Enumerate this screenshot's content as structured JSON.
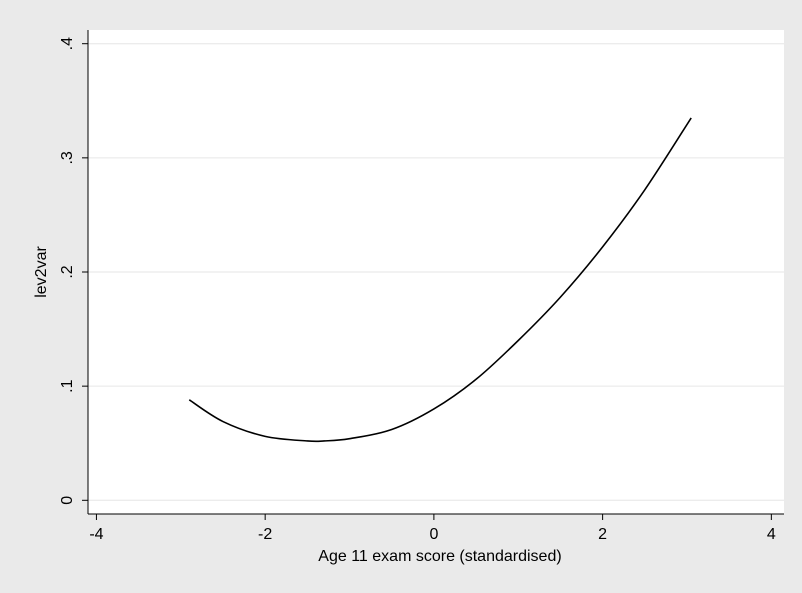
{
  "chart_data": {
    "type": "line",
    "title": "",
    "xlabel": "Age 11 exam score (standardised)",
    "ylabel": "lev2var",
    "xlim": [
      -4.1,
      4.15
    ],
    "ylim": [
      -0.012,
      0.412
    ],
    "xticks": [
      {
        "value": -4,
        "label": "-4"
      },
      {
        "value": -2,
        "label": "-2"
      },
      {
        "value": 0,
        "label": "0"
      },
      {
        "value": 2,
        "label": "2"
      },
      {
        "value": 4,
        "label": "4"
      }
    ],
    "yticks": [
      {
        "value": 0,
        "label": "0"
      },
      {
        "value": 0.1,
        "label": ".1"
      },
      {
        "value": 0.2,
        "label": ".2"
      },
      {
        "value": 0.3,
        "label": ".3"
      },
      {
        "value": 0.4,
        "label": ".4"
      }
    ],
    "grid": true,
    "legend": "none",
    "series": [
      {
        "color": "#000000",
        "x": [
          -2.9,
          -2.5,
          -2.0,
          -1.5,
          -1.3,
          -1.0,
          -0.5,
          0.0,
          0.5,
          1.0,
          1.5,
          2.0,
          2.5,
          3.05
        ],
        "y": [
          0.088,
          0.069,
          0.056,
          0.052,
          0.052,
          0.054,
          0.062,
          0.08,
          0.106,
          0.14,
          0.178,
          0.222,
          0.272,
          0.335
        ]
      }
    ]
  },
  "colors": {
    "background": "#eaeaea",
    "plot_background": "#ffffff",
    "grid": "#e6e6e6",
    "line": "#000000",
    "axis": "#000000"
  }
}
